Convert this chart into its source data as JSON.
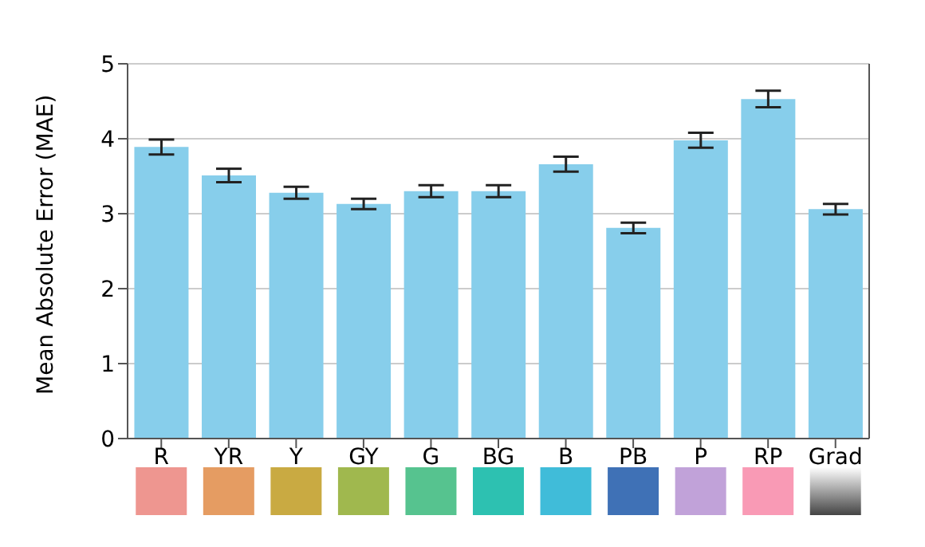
{
  "chart_data": {
    "type": "bar",
    "ylabel": "Mean Absolute Error (MAE)",
    "categories": [
      "R",
      "YR",
      "Y",
      "GY",
      "G",
      "BG",
      "B",
      "PB",
      "P",
      "RP",
      "Grad"
    ],
    "values": [
      3.89,
      3.51,
      3.28,
      3.13,
      3.3,
      3.3,
      3.66,
      2.81,
      3.98,
      4.53,
      3.06
    ],
    "errors": [
      0.1,
      0.09,
      0.08,
      0.07,
      0.08,
      0.08,
      0.1,
      0.07,
      0.1,
      0.11,
      0.07
    ],
    "color": "#87ceeb",
    "ylim": [
      0,
      5
    ],
    "yticks": [
      0,
      1,
      2,
      3,
      4,
      5
    ],
    "grid": "y"
  }
}
